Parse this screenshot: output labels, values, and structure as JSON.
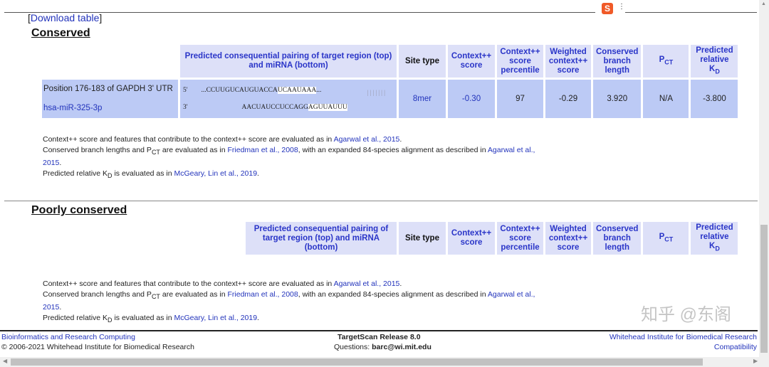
{
  "download_label": "Download table",
  "sections": [
    {
      "title": "Conserved",
      "headers": {
        "pairing": "Predicted consequential pairing of target region (top) and miRNA (bottom)",
        "site_type": "Site type",
        "context_score": "Context++ score",
        "percentile": "Context++ score percentile",
        "weighted": "Weighted context++ score",
        "branch": "Conserved branch length",
        "pct": "P",
        "pct_sub": "CT",
        "kd": "Predicted relative K",
        "kd_sub": "D"
      },
      "row": {
        "position": "Position 176-183 of GAPDH 3' UTR",
        "mirna": "hsa-miR-325-3p",
        "five": "5'",
        "three": "3'",
        "top_pre": "...CCUUGUCAUGUACCA",
        "top_hl": "UCAAUAAA",
        "top_post": "...",
        "pipes": "|||||||",
        "bot_pre": "AACUAUCCUCCAGG",
        "bot_hl": "AGUUAUUU",
        "site_type": "8mer",
        "context_score": "-0.30",
        "percentile": "97",
        "weighted": "-0.29",
        "branch": "3.920",
        "pct": "N/A",
        "kd": "-3.800"
      }
    },
    {
      "title": "Poorly conserved",
      "headers": {
        "pairing": "Predicted consequential pairing of target region (top) and miRNA (bottom)",
        "site_type": "Site type",
        "context_score": "Context++ score",
        "percentile": "Context++ score percentile",
        "weighted": "Weighted context++ score",
        "branch": "Conserved branch length",
        "pct": "P",
        "pct_sub": "CT",
        "kd": "Predicted relative K",
        "kd_sub": "D"
      }
    }
  ],
  "notes": {
    "l1": "Context++ score and features that contribute to the context++ score are evaluated as in ",
    "l1_link": "Agarwal et al., 2015",
    "l1_end": ".",
    "l2a": "Conserved branch lengths and P",
    "l2sub": "CT",
    "l2b": " are evaluated as in ",
    "l2_link1": "Friedman et al., 2008",
    "l2c": ", with an expanded 84-species alignment as described in ",
    "l2_link2": "Agarwal et al., 2015",
    "l2_end": ".",
    "l3a": "Predicted relative K",
    "l3sub": "D",
    "l3b": " is evaluated as in ",
    "l3_link": "McGeary, Lin et al., 2019",
    "l3_end": "."
  },
  "footer": {
    "left_link": "Bioinformatics and Research Computing",
    "copyright": "© 2006-2021 Whitehead Institute for Biomedical Research",
    "release": "TargetScan Release 8.0",
    "questions": "Questions: ",
    "email": "barc@wi.mit.edu",
    "right_link": "Whitehead Institute for Biomedical Research",
    "compat": "Compatibility"
  },
  "watermark": "知乎 @东阁"
}
